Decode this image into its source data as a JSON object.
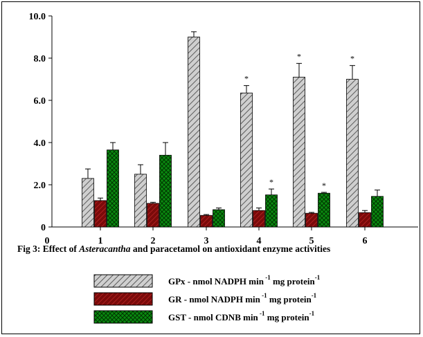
{
  "chart_data": {
    "type": "bar",
    "categories": [
      "1",
      "2",
      "3",
      "4",
      "5",
      "6"
    ],
    "x_origin_label": "0",
    "ylim": [
      0,
      10
    ],
    "yticks": [
      "0",
      "2.0",
      "4.0",
      "6.0",
      "8.0",
      "10.0"
    ],
    "ytick_values": [
      0,
      2,
      4,
      6,
      8,
      10
    ],
    "grid": false,
    "series": [
      {
        "name": "GPx",
        "legend_prefix": "GPx  -  nmol NADPH min",
        "legend_sup1": "-1",
        "legend_mid": " mg protein",
        "legend_sup2": "-1",
        "color": "#c8c8c8",
        "pattern": "diagonal",
        "values": [
          2.3,
          2.5,
          9.0,
          6.35,
          7.1,
          7.0
        ],
        "errors": [
          0.45,
          0.45,
          0.25,
          0.35,
          0.65,
          0.65
        ],
        "significance": [
          "",
          "",
          "",
          "*",
          "*",
          "*"
        ]
      },
      {
        "name": "GR",
        "legend_prefix": "GR   -  nmol NADPH min",
        "legend_sup1": "-1",
        "legend_mid": " mg protein",
        "legend_sup2": "-1",
        "color": "#8b1010",
        "pattern": "diagonal",
        "values": [
          1.25,
          1.12,
          0.55,
          0.78,
          0.65,
          0.68
        ],
        "errors": [
          0.12,
          0.05,
          0.04,
          0.12,
          0.04,
          0.1
        ],
        "significance": [
          "",
          "",
          "",
          "",
          "",
          ""
        ]
      },
      {
        "name": "GST",
        "legend_prefix": "GST  - nmol CDNB min",
        "legend_sup1": "-1",
        "legend_mid": "  mg protein",
        "legend_sup2": "-1",
        "color": "#0a7a10",
        "pattern": "crosshatch",
        "values": [
          3.65,
          3.4,
          0.82,
          1.52,
          1.6,
          1.45
        ],
        "errors": [
          0.35,
          0.6,
          0.08,
          0.28,
          0.04,
          0.3
        ],
        "significance": [
          "",
          "",
          "",
          "*",
          "*",
          ""
        ]
      }
    ],
    "caption_prefix": "Fig 3: Effect of ",
    "caption_italic": "Asteracantha",
    "caption_suffix": " and paracetamol on antioxidant enzyme activities"
  }
}
